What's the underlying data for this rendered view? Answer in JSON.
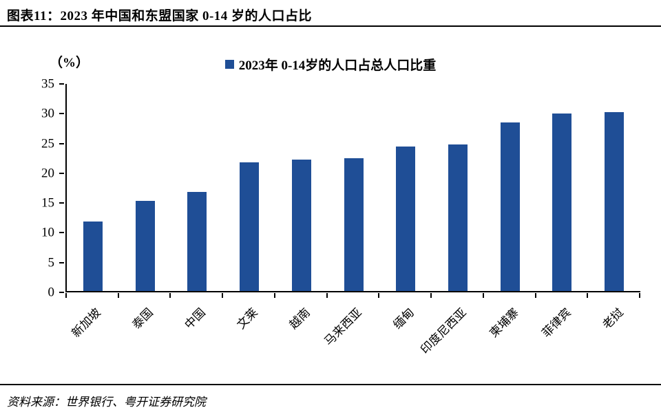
{
  "header": {
    "title": "图表11：2023 年中国和东盟国家 0-14 岁的人口占比"
  },
  "legend": {
    "label": "2023年 0-14岁的人口占总人口比重"
  },
  "axis": {
    "unit_label": "（%）"
  },
  "footer": {
    "source": "资料来源：世界银行、粤开证券研究院"
  },
  "colors": {
    "bar": "#1f4e96",
    "axis": "#000000"
  },
  "chart_data": {
    "type": "bar",
    "title": "2023年 0-14岁的人口占总人口比重",
    "categories": [
      "新加坡",
      "泰国",
      "中国",
      "文莱",
      "越南",
      "马来西亚",
      "缅甸",
      "印度尼西亚",
      "柬埔寨",
      "菲律宾",
      "老挝"
    ],
    "values": [
      11.7,
      15.2,
      16.8,
      21.7,
      22.2,
      22.4,
      24.4,
      24.8,
      28.5,
      30.0,
      30.2
    ],
    "xlabel": "",
    "ylabel": "（%）",
    "ylim": [
      0,
      35
    ],
    "yticks": [
      0,
      5,
      10,
      15,
      20,
      25,
      30,
      35
    ],
    "grid": false,
    "legend_position": "top"
  }
}
